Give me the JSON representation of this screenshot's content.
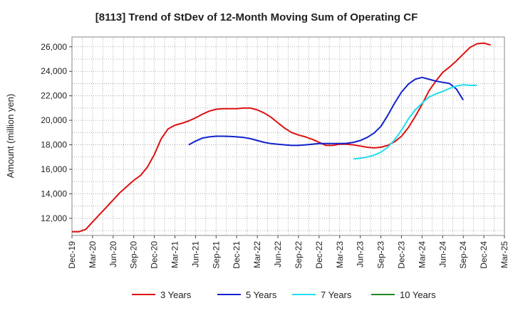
{
  "chart_data": {
    "type": "line",
    "title": "[8113]  Trend of StDev of 12-Month Moving Sum of Operating CF",
    "ylabel": "Amount (million yen)",
    "xlabel": "",
    "ylim": [
      10600,
      26800
    ],
    "yticks": [
      12000,
      14000,
      16000,
      18000,
      20000,
      22000,
      24000,
      26000
    ],
    "ytick_labels": [
      "12,000",
      "14,000",
      "16,000",
      "18,000",
      "20,000",
      "22,000",
      "24,000",
      "26,000"
    ],
    "x_start": "2019-12",
    "x_end": "2025-03",
    "xticks": [
      "2019-12",
      "2020-03",
      "2020-06",
      "2020-09",
      "2020-12",
      "2021-03",
      "2021-06",
      "2021-09",
      "2021-12",
      "2022-03",
      "2022-06",
      "2022-09",
      "2022-12",
      "2023-03",
      "2023-06",
      "2023-09",
      "2023-12",
      "2024-03",
      "2024-06",
      "2024-09",
      "2024-12",
      "2025-03"
    ],
    "xtick_labels": [
      "Dec-19",
      "Mar-20",
      "Jun-20",
      "Sep-20",
      "Dec-20",
      "Mar-21",
      "Jun-21",
      "Sep-21",
      "Dec-21",
      "Mar-22",
      "Jun-22",
      "Sep-22",
      "Dec-22",
      "Mar-23",
      "Jun-23",
      "Sep-23",
      "Dec-23",
      "Mar-24",
      "Jun-24",
      "Sep-24",
      "Dec-24",
      "Mar-25"
    ],
    "grid": true,
    "legend_position": "bottom",
    "series": [
      {
        "name": "3 Years",
        "color": "#dd1111",
        "x_start": "2019-12",
        "values": [
          10900,
          10900,
          11100,
          11700,
          12300,
          12900,
          13500,
          14100,
          14600,
          15100,
          15500,
          16200,
          17200,
          18500,
          19300,
          19600,
          19750,
          19950,
          20200,
          20500,
          20750,
          20900,
          20950,
          20950,
          20950,
          21000,
          21000,
          20850,
          20600,
          20250,
          19800,
          19350,
          19000,
          18800,
          18650,
          18450,
          18200,
          17950,
          17950,
          18050,
          18050,
          18000,
          17900,
          17800,
          17750,
          17800,
          17950,
          18250,
          18700,
          19400,
          20300,
          21300,
          22400,
          23200,
          23900,
          24350,
          24850,
          25400,
          25950,
          26250,
          26300,
          26150
        ]
      },
      {
        "name": "5 Years",
        "color": "#1122cc",
        "x_start": "2021-05",
        "values": [
          18000,
          18300,
          18550,
          18650,
          18700,
          18700,
          18680,
          18650,
          18600,
          18500,
          18350,
          18200,
          18100,
          18050,
          18000,
          17950,
          17950,
          18000,
          18050,
          18100,
          18100,
          18100,
          18100,
          18120,
          18200,
          18350,
          18600,
          18950,
          19500,
          20400,
          21400,
          22300,
          22950,
          23350,
          23500,
          23350,
          23200,
          23100,
          23000,
          22550,
          21650
        ]
      },
      {
        "name": "7 Years",
        "color": "#22ddee",
        "x_start": "2023-05",
        "values": [
          16850,
          16900,
          17000,
          17150,
          17400,
          17800,
          18400,
          19200,
          20100,
          20850,
          21400,
          21900,
          22150,
          22350,
          22600,
          22800,
          22900,
          22850,
          22850
        ]
      },
      {
        "name": "10 Years",
        "color": "#228822",
        "x_start": "2025-03",
        "values": []
      }
    ]
  }
}
